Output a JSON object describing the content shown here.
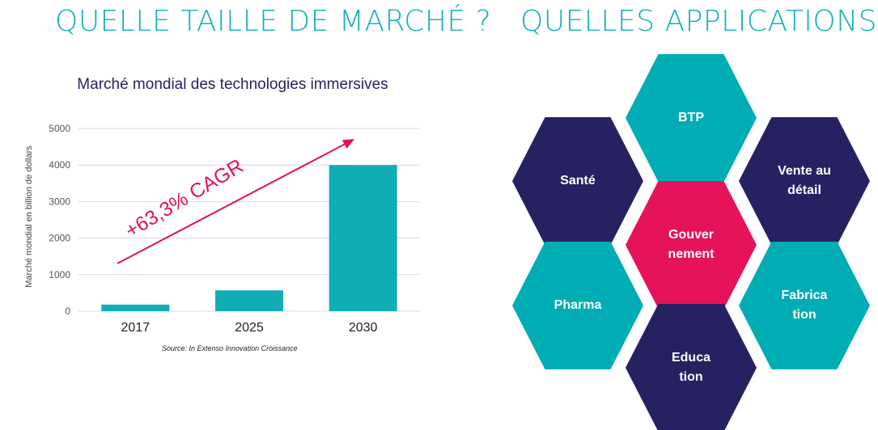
{
  "left_section": {
    "heading": "QUELLE TAILLE DE MARCHÉ ?"
  },
  "right_section": {
    "heading": "QUELLES APPLICATIONS ?"
  },
  "colors": {
    "heading": "#14b1b9",
    "bar": "#11adb5",
    "arrow": "#e5125b",
    "navy": "#262262",
    "teal": "#00adb4",
    "pink": "#e6125c"
  },
  "chart_data": {
    "type": "bar",
    "title": "Marché mondial des technologies immersives",
    "categories": [
      "2017",
      "2025",
      "2030"
    ],
    "values": [
      180,
      570,
      4000
    ],
    "ylabel": "Marché mondial en billion de dollars",
    "ylim": [
      0,
      5000
    ],
    "yticks": [
      "0",
      "1000",
      "2000",
      "3000",
      "4000",
      "5000"
    ],
    "grid": true,
    "annotation": "+63,3% CAGR",
    "source": "Source: In Extenso Innovation Croissance"
  },
  "applications": [
    {
      "label": "BTP",
      "color": "teal"
    },
    {
      "label": "Santé",
      "color": "navy"
    },
    {
      "label": "Vente au\ndétail",
      "color": "navy"
    },
    {
      "label": "Gouver\nnement",
      "color": "pink"
    },
    {
      "label": "Pharma",
      "color": "teal"
    },
    {
      "label": "Fabrica\ntion",
      "color": "teal"
    },
    {
      "label": "Educa\ntion",
      "color": "navy"
    }
  ]
}
